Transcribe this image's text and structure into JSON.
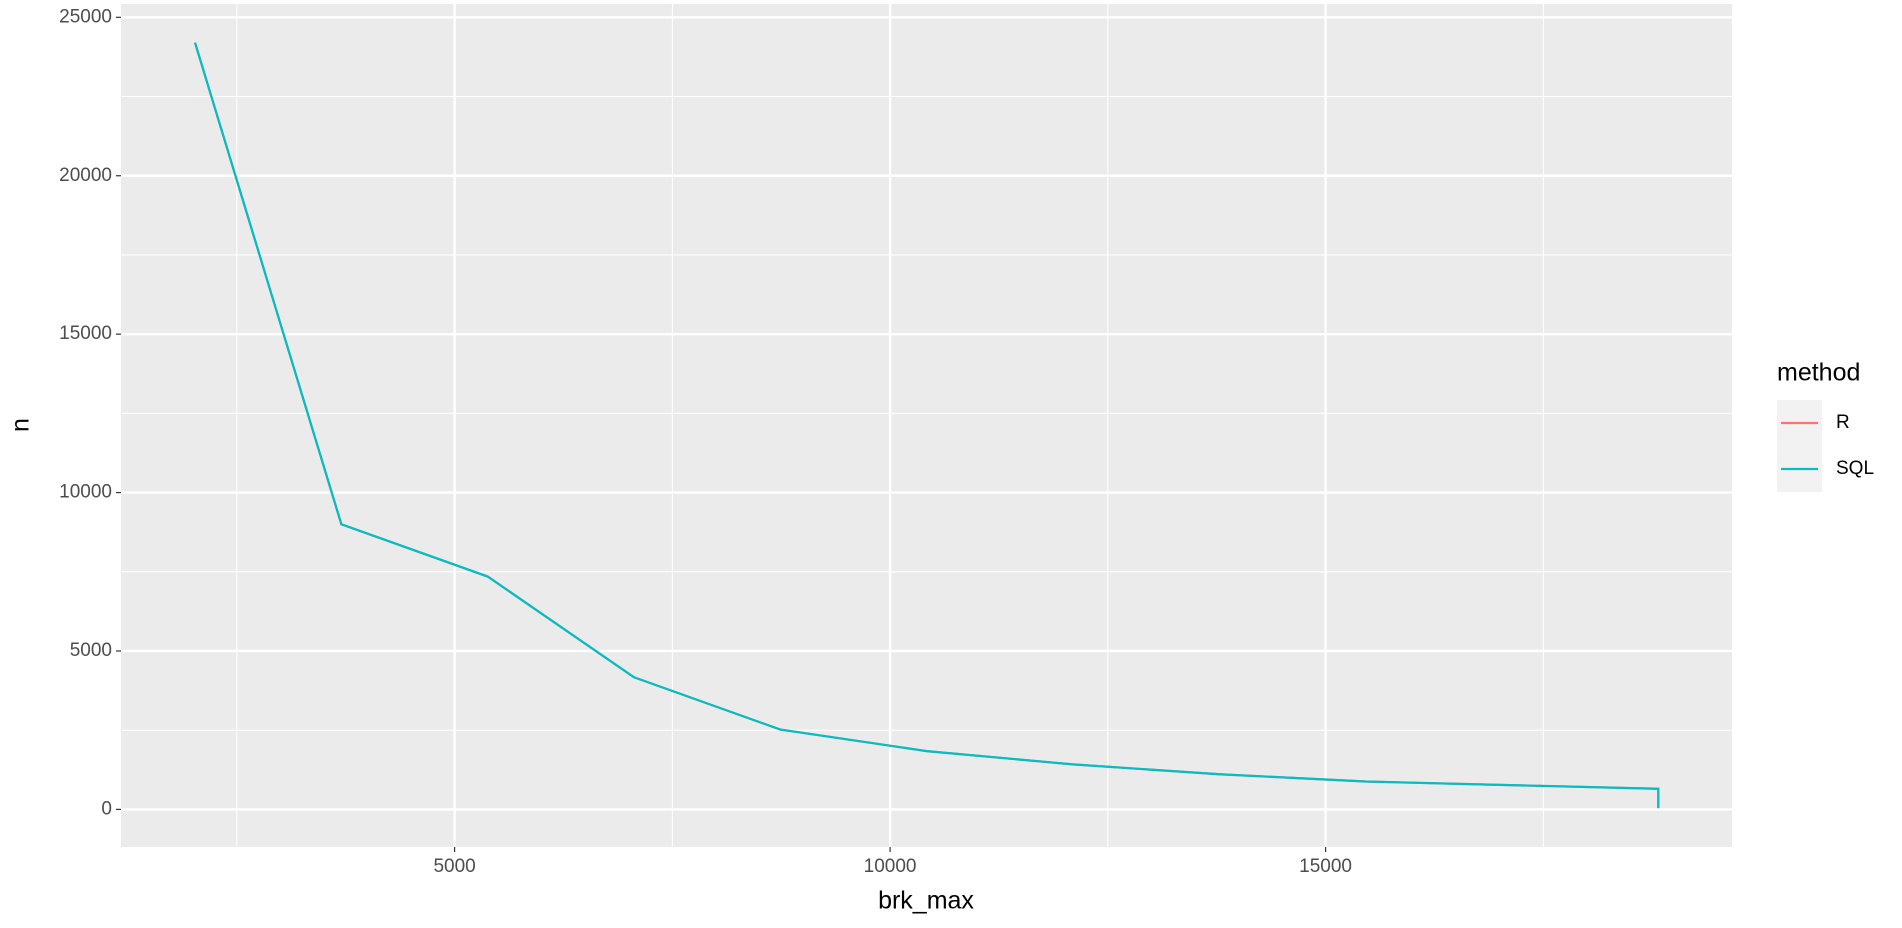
{
  "chart_data": {
    "type": "line",
    "x_label": "brk_max",
    "y_label": "n",
    "legend_title": "method",
    "legend_position": "right",
    "x": [
      2020,
      3700,
      5380,
      7060,
      8740,
      10420,
      12100,
      13780,
      15460,
      18820,
      18820
    ],
    "series": [
      {
        "name": "R",
        "color": "#f8766d",
        "values": [
          24200,
          9000,
          7350,
          4170,
          2520,
          1840,
          1420,
          1110,
          880,
          650,
          40
        ]
      },
      {
        "name": "SQL",
        "color": "#00bfc4",
        "values": [
          24200,
          9000,
          7350,
          4170,
          2520,
          1840,
          1420,
          1110,
          880,
          650,
          40
        ]
      }
    ],
    "xlim": [
      1170,
      19666
    ],
    "xticks": [
      5000,
      10000,
      15000
    ],
    "ylim": [
      -1187,
      25421
    ],
    "yticks": [
      0,
      5000,
      10000,
      15000,
      20000,
      25000
    ],
    "grid": true
  }
}
